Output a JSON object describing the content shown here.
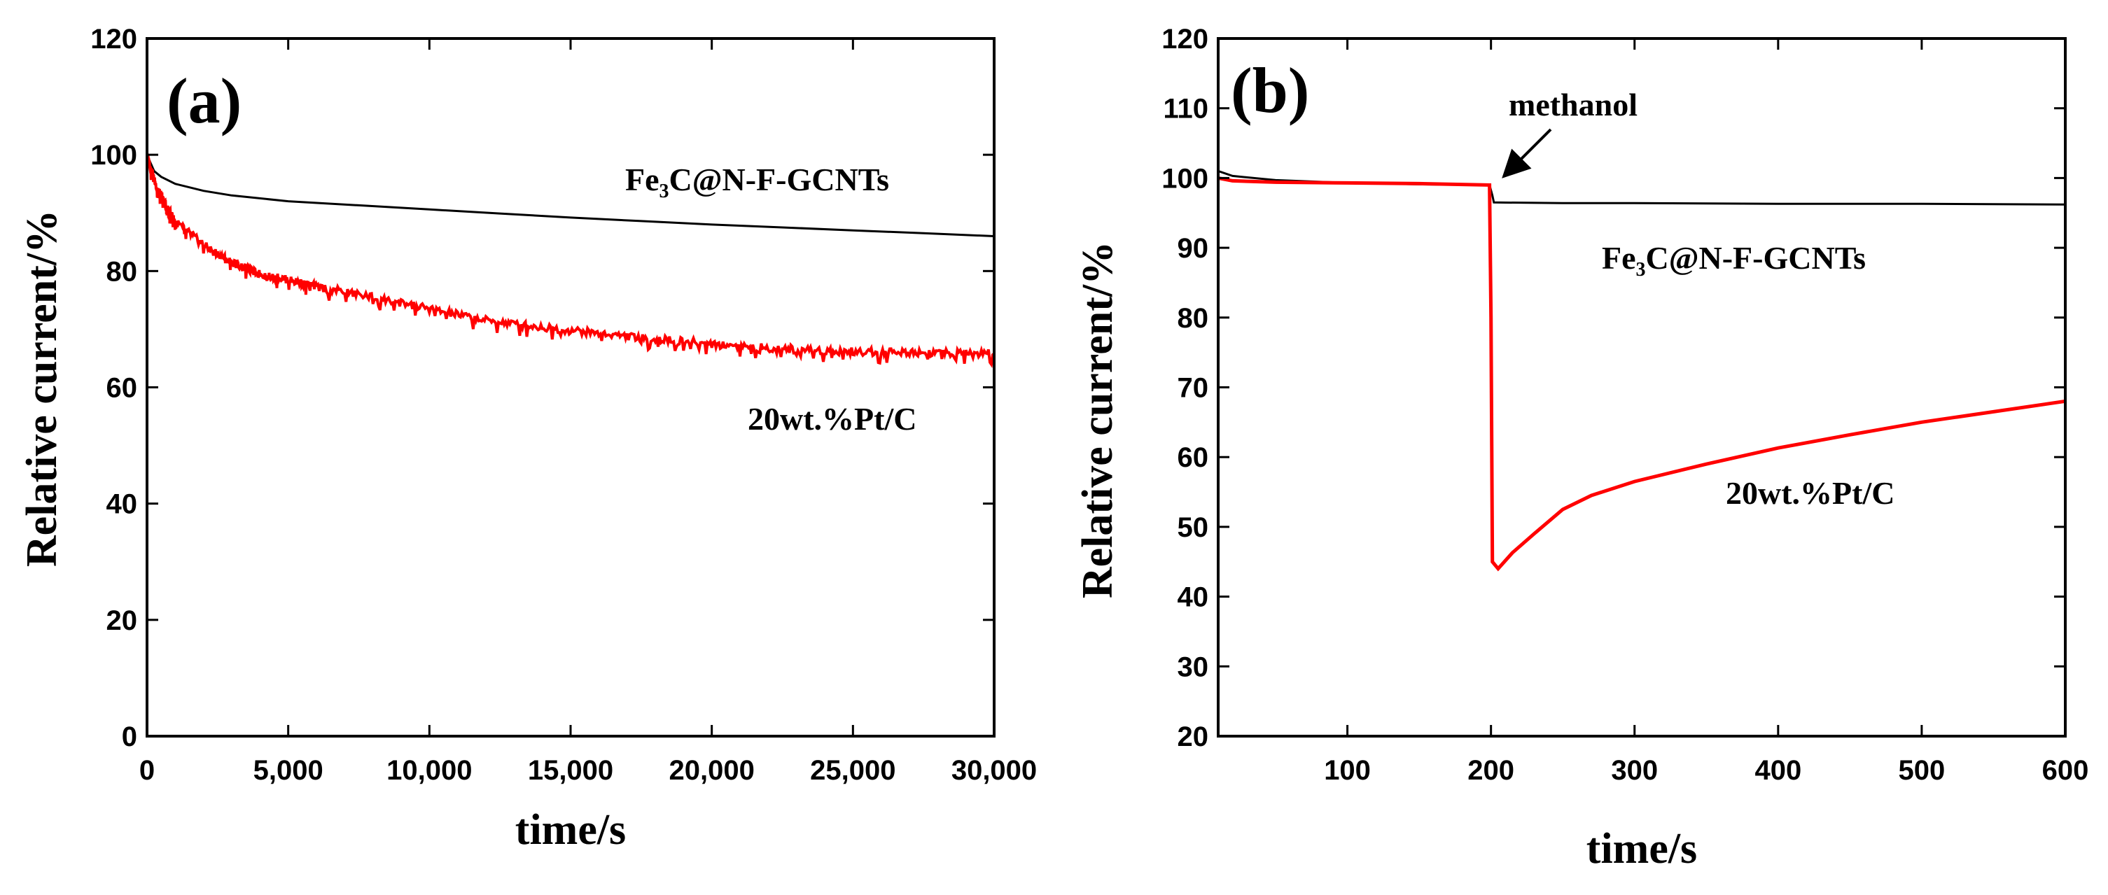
{
  "chart_data": [
    {
      "type": "line",
      "panel_label": "(a)",
      "xlabel": "time/s",
      "ylabel": "Relative current/%",
      "xlim": [
        0,
        30000
      ],
      "ylim": [
        0,
        120
      ],
      "x_ticks": [
        0,
        5000,
        10000,
        15000,
        20000,
        25000,
        30000
      ],
      "x_tick_labels": [
        "0",
        "5,000",
        "10,000",
        "15,000",
        "20,000",
        "25,000",
        "30,000"
      ],
      "y_ticks": [
        0,
        20,
        40,
        60,
        80,
        100,
        120
      ],
      "y_tick_labels": [
        "0",
        "20",
        "40",
        "60",
        "80",
        "100",
        "120"
      ],
      "series": [
        {
          "name": "Fe3C@N-F-GCNTs",
          "color": "#000000",
          "x": [
            0,
            250,
            500,
            1000,
            2000,
            3000,
            5000,
            7500,
            10000,
            12500,
            15000,
            17500,
            20000,
            22500,
            25000,
            27500,
            30000
          ],
          "y": [
            100,
            97.2,
            96.2,
            95.0,
            93.8,
            93.0,
            92.0,
            91.3,
            90.6,
            89.9,
            89.2,
            88.6,
            88.0,
            87.5,
            87.0,
            86.5,
            86.0
          ]
        },
        {
          "name": "20wt.%Pt/C",
          "color": "#ff0000",
          "x": [
            0,
            300,
            700,
            1000,
            2000,
            3000,
            4000,
            5000,
            6000,
            8000,
            10000,
            12000,
            14000,
            16000,
            18000,
            20000,
            22000,
            24000,
            26000,
            28000,
            30000
          ],
          "y": [
            100,
            95,
            91,
            88.5,
            84.5,
            81.5,
            79.5,
            78.5,
            77.3,
            75.5,
            73.5,
            71.5,
            70.3,
            69.3,
            68.3,
            67.5,
            66.8,
            66.3,
            66.1,
            66.0,
            65.8
          ]
        }
      ],
      "annotations": {
        "fe_main": "Fe",
        "fe_sub": "3",
        "fe_rest": "C@N-F-GCNTs",
        "pt": "20wt.%Pt/C"
      }
    },
    {
      "type": "line",
      "panel_label": "(b)",
      "xlabel": "time/s",
      "ylabel": "Relative current/%",
      "xlim": [
        10,
        600
      ],
      "ylim": [
        20,
        120
      ],
      "x_ticks": [
        100,
        200,
        300,
        400,
        500,
        600
      ],
      "x_tick_labels": [
        "100",
        "200",
        "300",
        "400",
        "500",
        "600"
      ],
      "y_ticks": [
        20,
        30,
        40,
        50,
        60,
        70,
        80,
        90,
        100,
        110,
        120
      ],
      "y_tick_labels": [
        "20",
        "30",
        "40",
        "50",
        "60",
        "70",
        "80",
        "90",
        "100",
        "110",
        "120"
      ],
      "series": [
        {
          "name": "Fe3C@N-F-GCNTs",
          "color": "#000000",
          "x": [
            10,
            20,
            50,
            100,
            150,
            199,
            201,
            202,
            250,
            300,
            400,
            500,
            600
          ],
          "y": [
            101,
            100.3,
            99.7,
            99.3,
            99.1,
            99.0,
            97.5,
            96.5,
            96.4,
            96.4,
            96.3,
            96.3,
            96.2
          ]
        },
        {
          "name": "20wt.%Pt/C",
          "color": "#ff0000",
          "x": [
            10,
            20,
            50,
            100,
            150,
            199,
            200,
            201,
            205,
            215,
            230,
            250,
            270,
            300,
            350,
            400,
            450,
            500,
            550,
            600
          ],
          "y": [
            100,
            99.6,
            99.4,
            99.3,
            99.2,
            99.0,
            80,
            45,
            44,
            46.3,
            49,
            52.5,
            54.5,
            56.5,
            59,
            61.3,
            63.2,
            65,
            66.5,
            68
          ]
        }
      ],
      "annotations": {
        "arrow_label": "methanol",
        "fe_main": "Fe",
        "fe_sub": "3",
        "fe_rest": "C@N-F-GCNTs",
        "pt": "20wt.%Pt/C"
      }
    }
  ]
}
